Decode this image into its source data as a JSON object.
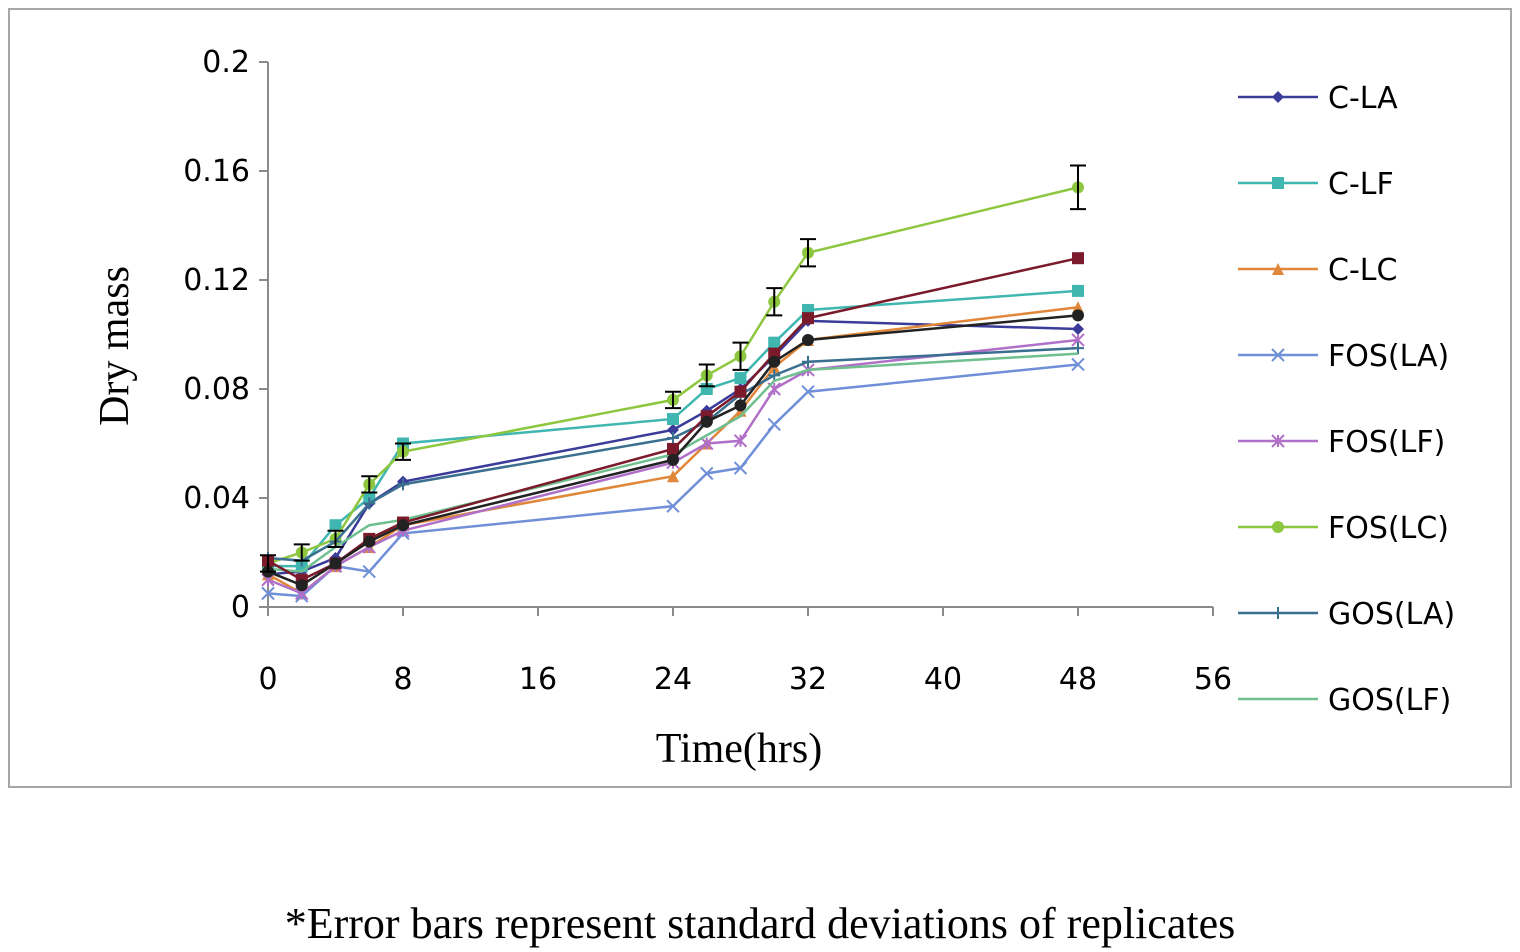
{
  "chart_data": {
    "type": "line",
    "title": "",
    "xlabel": "Time(hrs)",
    "ylabel": "Dry mass",
    "xlim": [
      0,
      56
    ],
    "ylim": [
      0,
      0.2
    ],
    "xticks": [
      "0",
      "8",
      "16",
      "24",
      "32",
      "40",
      "48",
      "56"
    ],
    "yticks": [
      "0",
      "0.04",
      "0.08",
      "0.12",
      "0.16",
      "0.2"
    ],
    "grid": false,
    "legend_position": "right",
    "x": [
      0,
      2,
      4,
      6,
      8,
      24,
      26,
      28,
      30,
      32,
      48
    ],
    "series": [
      {
        "name": "C-LA",
        "color": "#3b3b9a",
        "marker": "diamond",
        "values": [
          0.012,
          0.013,
          0.018,
          0.038,
          0.046,
          0.065,
          0.072,
          0.08,
          0.092,
          0.105,
          0.102
        ]
      },
      {
        "name": "C-LF",
        "color": "#3fb6b0",
        "marker": "square",
        "values": [
          0.015,
          0.015,
          0.03,
          0.04,
          0.06,
          0.069,
          0.08,
          0.084,
          0.097,
          0.109,
          0.116
        ]
      },
      {
        "name": "C-LC",
        "color": "#e0873a",
        "marker": "triangle",
        "values": [
          0.012,
          0.005,
          0.015,
          0.022,
          0.03,
          0.048,
          0.06,
          0.072,
          0.088,
          0.098,
          0.11
        ]
      },
      {
        "name": "FOS(LA)",
        "color": "#6f8fd8",
        "marker": "x",
        "values": [
          0.005,
          0.004,
          0.015,
          0.013,
          0.027,
          0.037,
          0.049,
          0.051,
          0.067,
          0.079,
          0.089
        ]
      },
      {
        "name": "FOS(LF)",
        "color": "#b070c8",
        "marker": "asterisk",
        "values": [
          0.01,
          0.005,
          0.015,
          0.022,
          0.028,
          0.053,
          0.06,
          0.061,
          0.08,
          0.087,
          0.098
        ]
      },
      {
        "name": "FOS(LC)",
        "color": "#8dc63f",
        "marker": "circle",
        "values": [
          0.016,
          0.02,
          0.025,
          0.045,
          0.057,
          0.076,
          0.085,
          0.092,
          0.112,
          0.13,
          0.154
        ]
      },
      {
        "name": "GOS(LA)",
        "color": "#3a6f8f",
        "marker": "plus",
        "values": [
          0.018,
          0.017,
          0.024,
          0.038,
          0.045,
          0.062,
          0.068,
          0.078,
          0.085,
          0.09,
          0.095
        ]
      },
      {
        "name": "GOS(LF)",
        "color": "#6fbf8f",
        "marker": "none",
        "values": [
          0.014,
          0.013,
          0.022,
          0.03,
          0.032,
          0.056,
          0.063,
          0.07,
          0.083,
          0.087,
          0.093
        ]
      },
      {
        "name": "",
        "color": "#7a1a2a",
        "marker": "square",
        "values": [
          0.017,
          0.01,
          0.016,
          0.025,
          0.031,
          0.058,
          0.07,
          0.079,
          0.093,
          0.106,
          0.128
        ]
      },
      {
        "name": "",
        "color": "#222222",
        "marker": "circle",
        "values": [
          0.013,
          0.008,
          0.016,
          0.024,
          0.03,
          0.054,
          0.068,
          0.074,
          0.09,
          0.098,
          0.107
        ]
      }
    ],
    "error_bars": {
      "series": "FOS(LC)",
      "values": [
        0.003,
        0.003,
        0.003,
        0.003,
        0.003,
        0.003,
        0.004,
        0.005,
        0.005,
        0.005,
        0.008
      ]
    },
    "footnote": "*Error bars represent standard deviations of replicates"
  }
}
